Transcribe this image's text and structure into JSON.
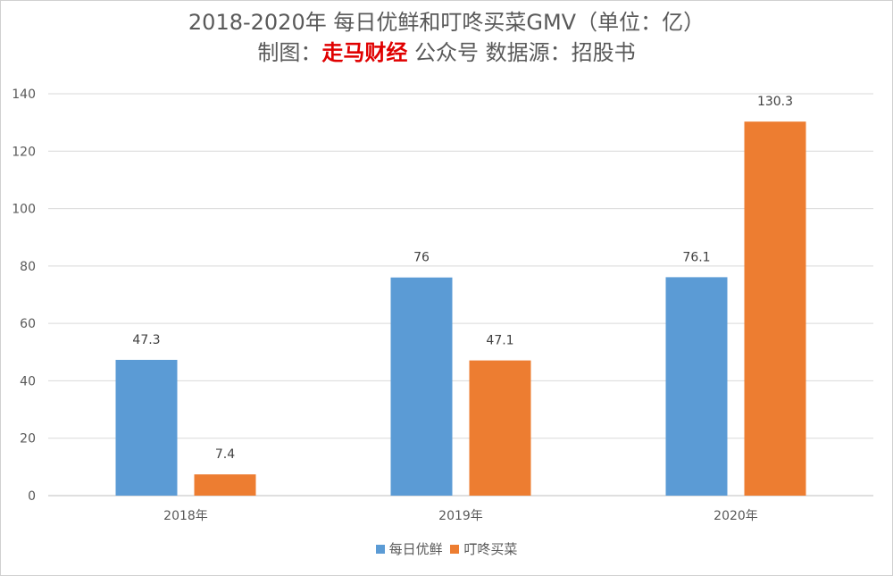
{
  "chart_data": {
    "type": "bar",
    "title": "2018-2020年 每日优鲜和叮咚买菜GMV（单位：亿）",
    "subtitle": {
      "prefix": "制图：",
      "highlight": "走马财经",
      "suffix": " 公众号 数据源：招股书"
    },
    "categories": [
      "2018年",
      "2019年",
      "2020年"
    ],
    "series": [
      {
        "name": "每日优鲜",
        "values": [
          47.3,
          76,
          76.1
        ],
        "color": "#5b9bd5"
      },
      {
        "name": "叮咚买菜",
        "values": [
          7.4,
          47.1,
          130.3
        ],
        "color": "#ed7d31"
      }
    ],
    "ylim": [
      0,
      140
    ],
    "yticks": [
      0,
      20,
      40,
      60,
      80,
      100,
      120,
      140
    ],
    "grid": true,
    "legend_position": "bottom"
  }
}
